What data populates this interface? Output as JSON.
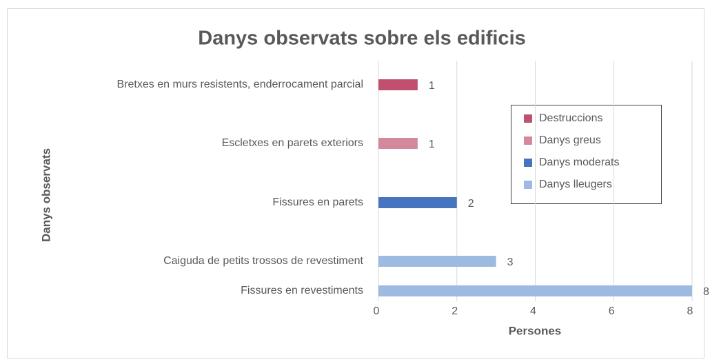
{
  "chart_data": {
    "type": "hbar",
    "title": "Danys observats sobre els edificis",
    "xlabel": "Persones",
    "ylabel": "Danys observats",
    "categories": [
      "Bretxes en murs resistents, enderrocament parcial",
      "Escletxes en parets exteriors",
      "Fissures en parets",
      "Caiguda de petits trossos de revestiment",
      "Fissures en revestiments"
    ],
    "series": [
      {
        "name": "Destruccions",
        "color": "#c0506e",
        "values": [
          1,
          null,
          null,
          null,
          null
        ]
      },
      {
        "name": "Danys greus",
        "color": "#d4899a",
        "values": [
          null,
          1,
          null,
          null,
          null
        ]
      },
      {
        "name": "Danys moderats",
        "color": "#4675c0",
        "values": [
          null,
          null,
          2,
          null,
          null
        ]
      },
      {
        "name": "Danys lleugers",
        "color": "#9dbae0",
        "values": [
          null,
          null,
          null,
          3,
          8
        ]
      }
    ],
    "xlim": [
      0,
      8
    ],
    "xticks": [
      0,
      2,
      4,
      6,
      8
    ],
    "grid": true
  }
}
